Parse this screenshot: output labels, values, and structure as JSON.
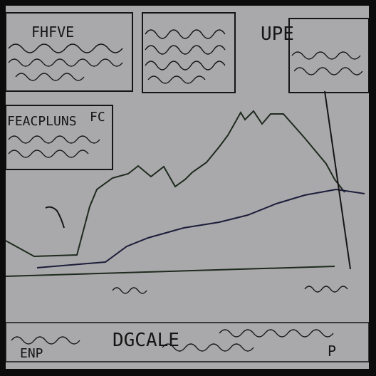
{
  "colors": {
    "border": "#0c0c0c",
    "paper": "#a9a9ab",
    "ink": "#151515",
    "line_dark": "#1e2a1e",
    "line_navy": "#1c1c3a"
  },
  "labels": {
    "top_left": "FHFVE",
    "top_right": "UPE",
    "mid_left": "FEACPLUNS",
    "mid_left_small": "FC",
    "bottom_center": "DGCALE",
    "bottom_left": "ENP",
    "bottom_right": "P"
  }
}
